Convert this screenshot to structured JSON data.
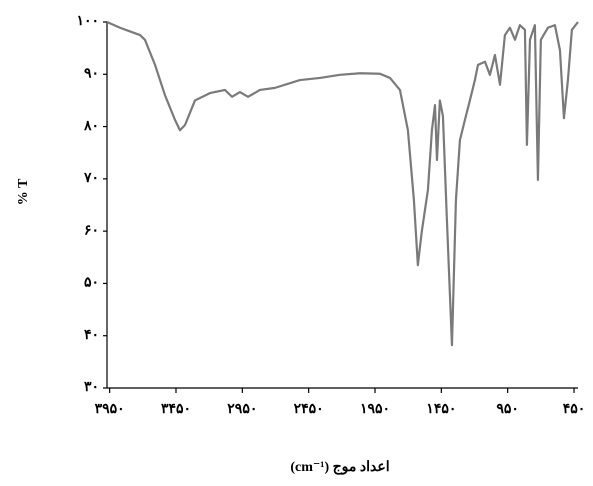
{
  "chart_data": {
    "type": "line",
    "xlabel": "اعداد موج (cm⁻¹)",
    "ylabel": "% T",
    "xlim": [
      3970,
      420
    ],
    "ylim": [
      30,
      100
    ],
    "xticks": [
      {
        "value": 3950,
        "label": "۳۹۵۰"
      },
      {
        "value": 3450,
        "label": "۳۴۵۰"
      },
      {
        "value": 2950,
        "label": "۲۹۵۰"
      },
      {
        "value": 2450,
        "label": "۲۴۵۰"
      },
      {
        "value": 1950,
        "label": "۱۹۵۰"
      },
      {
        "value": 1450,
        "label": "۱۴۵۰"
      },
      {
        "value": 950,
        "label": "۹۵۰"
      },
      {
        "value": 450,
        "label": "۴۵۰"
      }
    ],
    "yticks": [
      {
        "value": 30,
        "label": "۳۰"
      },
      {
        "value": 40,
        "label": "۴۰"
      },
      {
        "value": 50,
        "label": "۵۰"
      },
      {
        "value": 60,
        "label": "۶۰"
      },
      {
        "value": 70,
        "label": "۷۰"
      },
      {
        "value": 80,
        "label": "۸۰"
      },
      {
        "value": 90,
        "label": "۹۰"
      },
      {
        "value": 100,
        "label": "۱۰۰"
      }
    ],
    "grid": false,
    "series": [
      {
        "color": "#7a7a7a",
        "x": [
          3970,
          3872,
          3721,
          3684,
          3608,
          3533,
          3458,
          3420,
          3382,
          3307,
          3194,
          3081,
          3028,
          2968,
          2907,
          2817,
          2704,
          2516,
          2365,
          2214,
          2063,
          1913,
          1837,
          1762,
          1702,
          1657,
          1627,
          1597,
          1551,
          1521,
          1498,
          1483,
          1461,
          1438,
          1408,
          1370,
          1340,
          1310,
          1272,
          1235,
          1197,
          1174,
          1121,
          1084,
          1046,
          1008,
          971,
          933,
          895,
          858,
          820,
          805,
          782,
          745,
          722,
          700,
          647,
          594,
          556,
          526,
          496,
          466,
          420
        ],
        "values": [
          100,
          98.9,
          97.5,
          96.6,
          91.8,
          86,
          81.3,
          79.3,
          80.3,
          85,
          86.4,
          87,
          85.7,
          86.6,
          85.7,
          87,
          87.4,
          88.9,
          89.3,
          89.9,
          90.2,
          90.1,
          89.3,
          87,
          79.3,
          66,
          53.5,
          60,
          67.9,
          79.3,
          84.1,
          73.6,
          85,
          82,
          62.1,
          38.2,
          66,
          77.4,
          81.3,
          85,
          88.9,
          91.8,
          92.4,
          89.9,
          93.7,
          88,
          97.5,
          98.9,
          96.6,
          99.4,
          98.5,
          76.5,
          96.6,
          99.4,
          69.8,
          96.6,
          98.9,
          99.4,
          94.6,
          81.6,
          88.9,
          98.5,
          100
        ]
      }
    ]
  }
}
